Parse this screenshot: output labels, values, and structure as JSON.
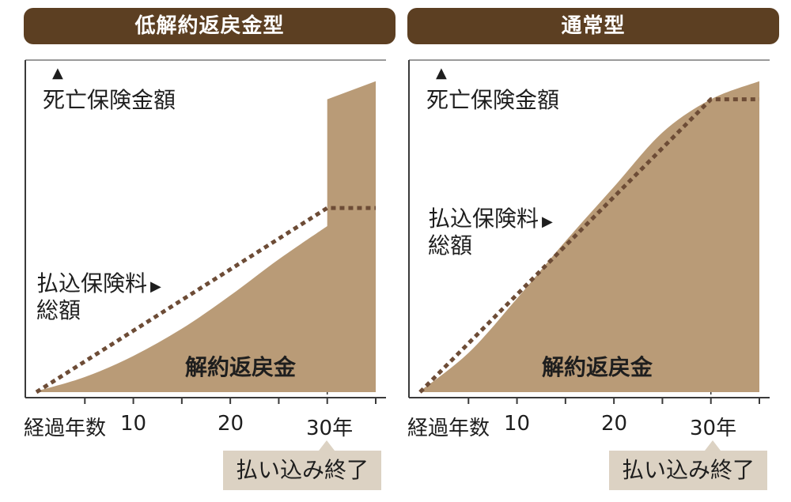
{
  "panels": [
    {
      "title": "低解約返戻金型",
      "death_benefit_label": "死亡保険金額",
      "premium_total_label": [
        "払込保険料",
        "総額"
      ],
      "premium_arrow": "▶",
      "surrender_label": "解約返戻金",
      "x_axis_label": "経過年数",
      "x_ticks": [
        "10",
        "20",
        "30年"
      ],
      "payment_end_label": "払い込み終了"
    },
    {
      "title": "通常型",
      "death_benefit_label": "死亡保険金額",
      "premium_total_label": [
        "払込保険料",
        "総額"
      ],
      "premium_arrow": "▶",
      "surrender_label": "解約返戻金",
      "x_axis_label": "経過年数",
      "x_ticks": [
        "10",
        "20",
        "30年"
      ],
      "payment_end_label": "払い込み終了"
    }
  ],
  "colors": {
    "header": "#5c3f22",
    "fill": "#b99b77",
    "dotted": "#6d4c36",
    "callout": "#dcd2c3"
  },
  "chart_data": [
    {
      "type": "area",
      "title": "低解約返戻金型",
      "xlabel": "経過年数",
      "xlim": [
        0,
        35
      ],
      "x_ticks": [
        10,
        20,
        30
      ],
      "series": [
        {
          "name": "解約返戻金",
          "x": [
            0,
            5,
            10,
            15,
            20,
            25,
            30,
            30,
            35
          ],
          "values": [
            0.3,
            5,
            12,
            21,
            32,
            44,
            55,
            97,
            103
          ]
        },
        {
          "name": "払込保険料総額",
          "x": [
            0,
            30,
            35
          ],
          "values": [
            0,
            61,
            61
          ]
        }
      ]
    },
    {
      "type": "area",
      "title": "通常型",
      "xlabel": "経過年数",
      "xlim": [
        0,
        35
      ],
      "x_ticks": [
        10,
        20,
        30
      ],
      "series": [
        {
          "name": "解約返戻金",
          "x": [
            0,
            5,
            10,
            15,
            20,
            25,
            30,
            35
          ],
          "values": [
            0.3,
            13,
            31,
            50,
            68,
            86,
            97,
            103
          ]
        },
        {
          "name": "払込保険料総額",
          "x": [
            0,
            30,
            35
          ],
          "values": [
            0,
            97,
            97
          ]
        }
      ]
    }
  ]
}
